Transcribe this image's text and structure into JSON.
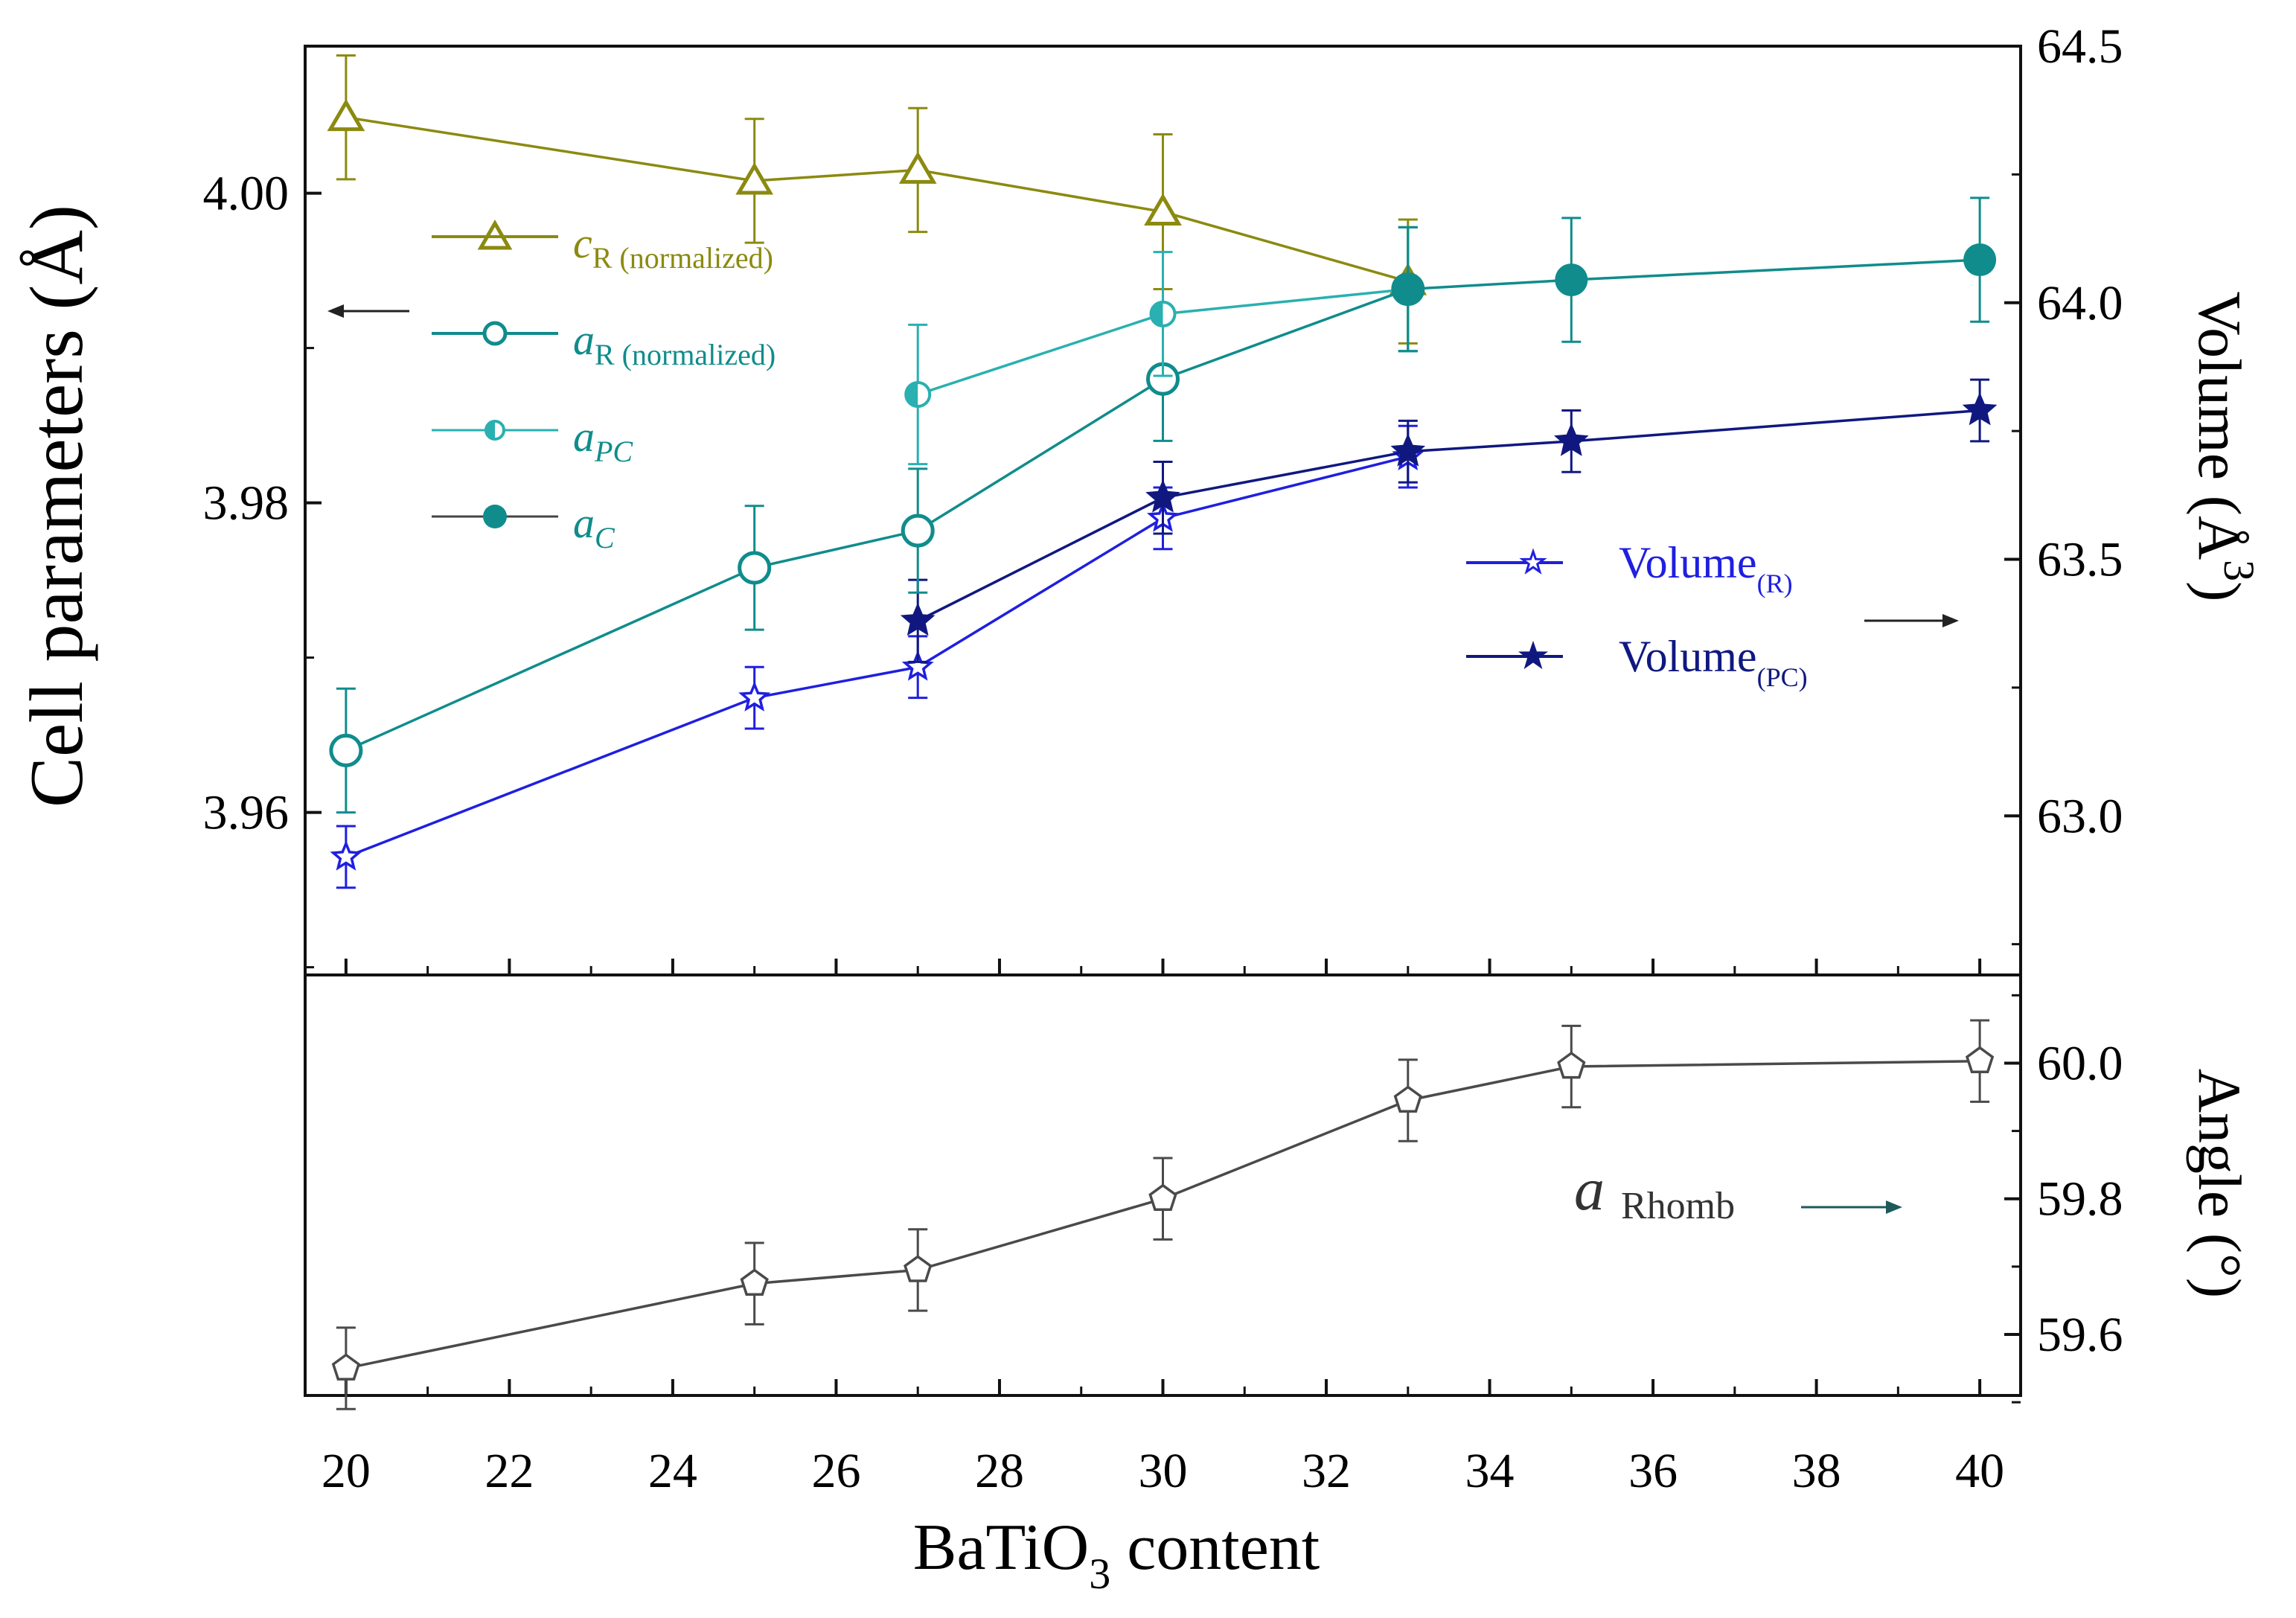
{
  "chart_data": {
    "type": "line",
    "x_label": "BaTiO",
    "x_label_sub": "3",
    "x_label_rest": " content",
    "x_range": [
      19.5,
      40.5
    ],
    "x_ticks": [
      20,
      22,
      24,
      26,
      28,
      30,
      32,
      34,
      36,
      38,
      40
    ],
    "top_panel": {
      "y_left_label": "Cell parameters (Å)",
      "y_left_range": [
        3.9495,
        4.0095
      ],
      "y_left_ticks": [
        "3.96",
        "3.98",
        "4.00"
      ],
      "y_right_label": "Volume (Å",
      "y_right_label_sup": "3",
      "y_right_label_end": ")",
      "y_right_range": [
        62.69,
        64.5
      ],
      "y_right_ticks": [
        "63.0",
        "63.5",
        "64.0",
        "64.5"
      ],
      "series": [
        {
          "name": "c",
          "sub": "R (normalized)",
          "axis": "left",
          "color": "#8b8a10",
          "marker": "triangle-open",
          "x": [
            20,
            25,
            27,
            30,
            33
          ],
          "y": [
            4.0049,
            4.0008,
            4.0015,
            3.9988,
            3.9943
          ],
          "err": [
            0.004,
            0.004,
            0.004,
            0.005,
            0.004
          ]
        },
        {
          "name": "a",
          "sub": "R (normalized)",
          "axis": "left",
          "color": "#108c8c",
          "marker": "circle-open",
          "x": [
            20,
            25,
            27,
            30,
            33
          ],
          "y": [
            3.964,
            3.9758,
            3.9782,
            3.988,
            3.9938
          ],
          "err": [
            0.004,
            0.004,
            0.004,
            0.004,
            0.004
          ]
        },
        {
          "name": "a",
          "sub": "PC",
          "axis": "left",
          "color": "#2ab0b0",
          "marker": "circle-half",
          "x": [
            27,
            30,
            33
          ],
          "y": [
            3.987,
            3.9922,
            3.9938
          ],
          "err": [
            0.0045,
            0.004,
            0.004
          ]
        },
        {
          "name": "a",
          "sub": "C",
          "axis": "left",
          "color": "#108c8c",
          "marker": "circle-filled",
          "x": [
            33,
            35,
            40
          ],
          "y": [
            3.9938,
            3.9944,
            3.9957
          ],
          "err": [
            0.004,
            0.004,
            0.004
          ]
        },
        {
          "name": "Volume",
          "sub": "(R)",
          "axis": "right",
          "color": "#1f1fe0",
          "marker": "star-open",
          "x": [
            20,
            25,
            27,
            30,
            33
          ],
          "y": [
            62.92,
            63.23,
            63.29,
            63.58,
            63.7
          ],
          "err": [
            0.06,
            0.06,
            0.06,
            0.06,
            0.06
          ]
        },
        {
          "name": "Volume",
          "sub": "(PC)",
          "axis": "right",
          "color": "#101880",
          "marker": "star-filled",
          "x": [
            27,
            30,
            33,
            35,
            40
          ],
          "y": [
            63.38,
            63.62,
            63.71,
            63.73,
            63.79
          ],
          "err": [
            0.08,
            0.07,
            0.06,
            0.06,
            0.06
          ]
        }
      ],
      "legend_left": [
        {
          "name": "c",
          "sub": "R (normalized)"
        },
        {
          "name": "a",
          "sub": "R (normalized)"
        },
        {
          "name": "a",
          "sub": "PC"
        },
        {
          "name": "a",
          "sub": "C"
        }
      ],
      "legend_right": [
        {
          "name": "Volume",
          "sub": "(R)"
        },
        {
          "name": "Volume",
          "sub": "(PC)"
        }
      ]
    },
    "bottom_panel": {
      "y_right_label": "Angle (°)",
      "y_right_range": [
        59.51,
        60.13
      ],
      "y_right_ticks": [
        "59.6",
        "59.8",
        "60.0"
      ],
      "series": [
        {
          "name": "a",
          "sub": "Rhomb",
          "color": "#4a4a4a",
          "marker": "pentagon-open",
          "x": [
            20,
            25,
            27,
            30,
            33,
            35,
            40
          ],
          "y": [
            59.55,
            59.675,
            59.695,
            59.8,
            59.945,
            59.995,
            60.003
          ],
          "err": [
            0.06,
            0.06,
            0.06,
            0.06,
            0.06,
            0.06,
            0.06
          ]
        }
      ]
    }
  }
}
